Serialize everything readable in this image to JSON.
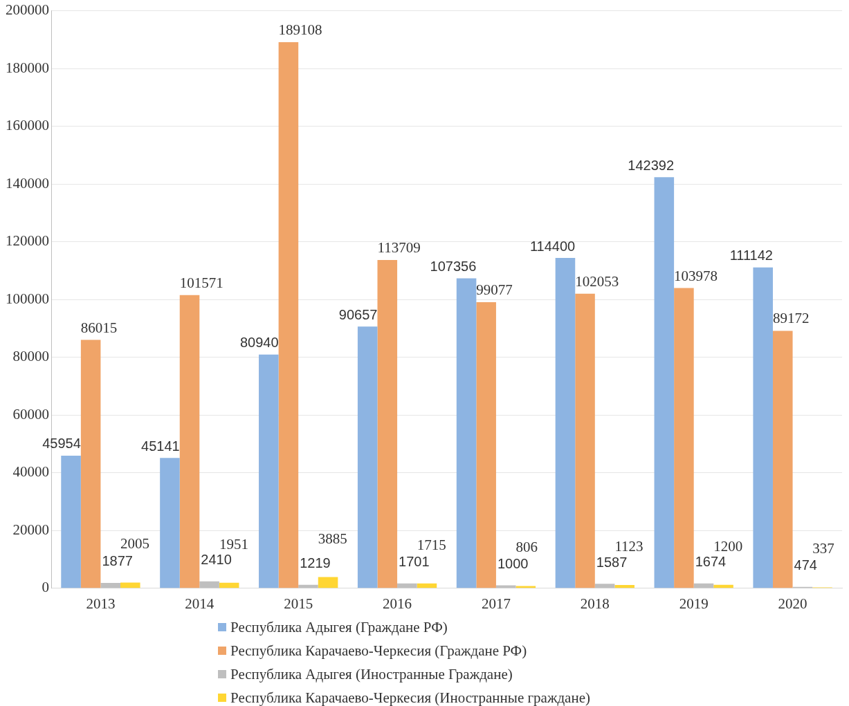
{
  "chart_data": {
    "type": "bar",
    "categories": [
      "2013",
      "2014",
      "2015",
      "2016",
      "2017",
      "2018",
      "2019",
      "2020"
    ],
    "series": [
      {
        "name": "Республика Адыгея (Граждане РФ)",
        "color": "#8db4e2",
        "values": [
          45954,
          45141,
          80940,
          90657,
          107356,
          114400,
          142392,
          111142
        ]
      },
      {
        "name": "Республика Карачаево-Черкесия (Граждане РФ)",
        "color": "#f0a468",
        "values": [
          86015,
          101571,
          189108,
          113709,
          99077,
          102053,
          103978,
          89172
        ]
      },
      {
        "name": "Республика Адыгея (Иностранные Граждане)",
        "color": "#bfbfbf",
        "values": [
          1877,
          2410,
          1219,
          1701,
          1000,
          1587,
          1674,
          474
        ]
      },
      {
        "name": "Республика Карачаево-Черкесия (Иностранные граждане)",
        "color": "#ffd633",
        "values": [
          2005,
          1951,
          3885,
          1715,
          806,
          1123,
          1200,
          337
        ]
      }
    ],
    "ylim": [
      0,
      200000
    ],
    "yticks": [
      0,
      20000,
      40000,
      60000,
      80000,
      100000,
      120000,
      140000,
      160000,
      180000,
      200000
    ],
    "grid": "y",
    "legend": "bottom",
    "data_labels": true
  }
}
